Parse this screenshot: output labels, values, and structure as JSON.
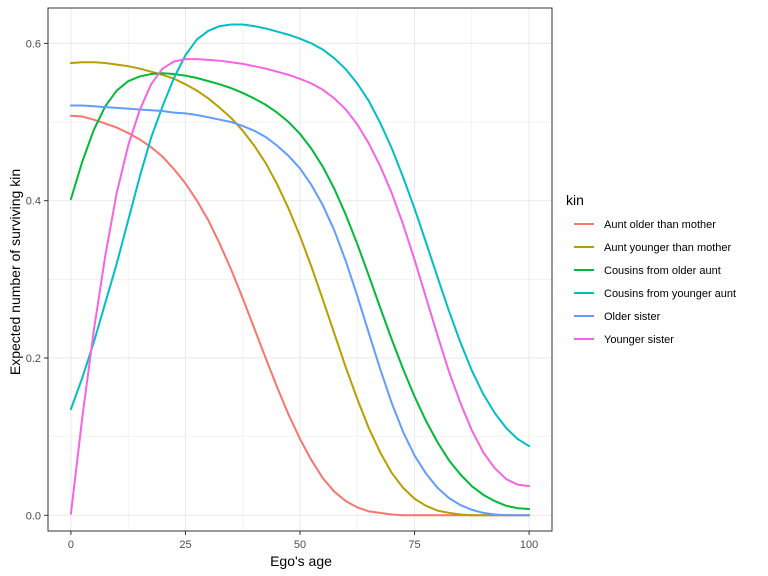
{
  "chart_data": {
    "type": "line",
    "title": "",
    "xlabel": "Ego's age",
    "ylabel": "Expected number of surviving kin",
    "xlim": [
      -5,
      105
    ],
    "ylim": [
      -0.02,
      0.645
    ],
    "x_ticks": [
      0,
      25,
      50,
      75,
      100
    ],
    "x_tick_labels": [
      "0",
      "25",
      "50",
      "75",
      "100"
    ],
    "y_ticks": [
      0.0,
      0.2,
      0.4,
      0.6
    ],
    "y_tick_labels": [
      "0.0",
      "0.2",
      "0.4",
      "0.6"
    ],
    "grid": true,
    "legend_title": "kin",
    "legend_position": "right",
    "x": [
      0,
      2.5,
      5,
      7.5,
      10,
      12.5,
      15,
      17.5,
      20,
      22.5,
      25,
      27.5,
      30,
      32.5,
      35,
      37.5,
      40,
      42.5,
      45,
      47.5,
      50,
      52.5,
      55,
      57.5,
      60,
      62.5,
      65,
      67.5,
      70,
      72.5,
      75,
      77.5,
      80,
      82.5,
      85,
      87.5,
      90,
      92.5,
      95,
      97.5,
      100
    ],
    "series": [
      {
        "name": "Aunt older than mother",
        "color": "#F8766D",
        "values": [
          0.508,
          0.507,
          0.503,
          0.498,
          0.493,
          0.486,
          0.478,
          0.468,
          0.456,
          0.44,
          0.422,
          0.4,
          0.375,
          0.345,
          0.312,
          0.276,
          0.238,
          0.2,
          0.163,
          0.128,
          0.097,
          0.07,
          0.047,
          0.03,
          0.018,
          0.01,
          0.005,
          0.003,
          0.001,
          0.0,
          0.0,
          0.0,
          0.0,
          0.0,
          0.0,
          0.0,
          0.0,
          0.0,
          0.0,
          0.0,
          0.0
        ]
      },
      {
        "name": "Aunt younger than mother",
        "color": "#B79F00",
        "values": [
          0.575,
          0.576,
          0.576,
          0.575,
          0.573,
          0.571,
          0.568,
          0.564,
          0.56,
          0.555,
          0.548,
          0.54,
          0.53,
          0.518,
          0.505,
          0.489,
          0.47,
          0.448,
          0.421,
          0.39,
          0.355,
          0.316,
          0.274,
          0.231,
          0.188,
          0.148,
          0.111,
          0.08,
          0.054,
          0.035,
          0.021,
          0.012,
          0.006,
          0.003,
          0.001,
          0.0,
          0.0,
          0.0,
          0.0,
          0.0,
          0.0
        ]
      },
      {
        "name": "Cousins from older aunt",
        "color": "#00BA38",
        "values": [
          0.402,
          0.45,
          0.49,
          0.52,
          0.54,
          0.552,
          0.558,
          0.561,
          0.562,
          0.561,
          0.559,
          0.556,
          0.552,
          0.548,
          0.543,
          0.537,
          0.53,
          0.522,
          0.512,
          0.5,
          0.485,
          0.466,
          0.443,
          0.415,
          0.382,
          0.345,
          0.305,
          0.264,
          0.224,
          0.186,
          0.151,
          0.12,
          0.093,
          0.07,
          0.052,
          0.037,
          0.026,
          0.018,
          0.012,
          0.009,
          0.008
        ]
      },
      {
        "name": "Cousins from younger aunt",
        "color": "#00BFC4",
        "values": [
          0.135,
          0.175,
          0.22,
          0.27,
          0.32,
          0.375,
          0.43,
          0.48,
          0.52,
          0.556,
          0.585,
          0.605,
          0.616,
          0.622,
          0.624,
          0.624,
          0.622,
          0.619,
          0.615,
          0.611,
          0.606,
          0.6,
          0.592,
          0.581,
          0.567,
          0.549,
          0.527,
          0.499,
          0.467,
          0.43,
          0.39,
          0.347,
          0.303,
          0.26,
          0.22,
          0.184,
          0.154,
          0.13,
          0.111,
          0.097,
          0.088
        ]
      },
      {
        "name": "Older sister",
        "color": "#619CFF",
        "values": [
          0.521,
          0.521,
          0.52,
          0.519,
          0.518,
          0.517,
          0.516,
          0.515,
          0.514,
          0.512,
          0.511,
          0.509,
          0.506,
          0.503,
          0.5,
          0.495,
          0.489,
          0.481,
          0.47,
          0.457,
          0.441,
          0.42,
          0.394,
          0.362,
          0.323,
          0.279,
          0.232,
          0.186,
          0.143,
          0.106,
          0.076,
          0.053,
          0.035,
          0.022,
          0.013,
          0.007,
          0.003,
          0.001,
          0.0,
          0.0,
          0.0
        ]
      },
      {
        "name": "Younger sister",
        "color": "#F564E3",
        "values": [
          0.002,
          0.125,
          0.235,
          0.33,
          0.41,
          0.47,
          0.515,
          0.548,
          0.568,
          0.577,
          0.58,
          0.58,
          0.579,
          0.578,
          0.576,
          0.574,
          0.571,
          0.568,
          0.564,
          0.56,
          0.555,
          0.549,
          0.541,
          0.53,
          0.516,
          0.497,
          0.473,
          0.444,
          0.41,
          0.37,
          0.325,
          0.277,
          0.229,
          0.183,
          0.143,
          0.108,
          0.08,
          0.06,
          0.046,
          0.039,
          0.037
        ]
      }
    ]
  }
}
